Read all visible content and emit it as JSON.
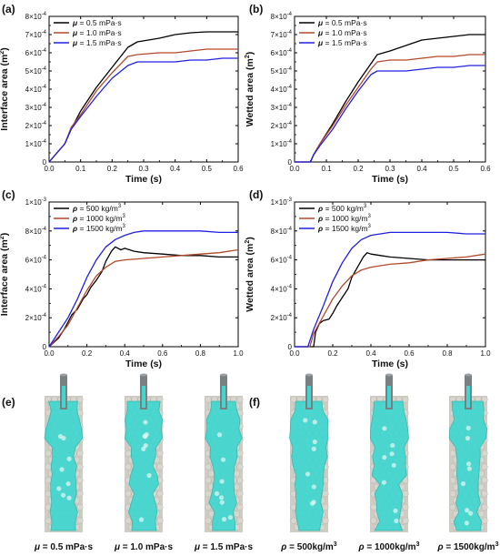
{
  "chart_data": [
    {
      "id": "a",
      "panel": "(a)",
      "type": "line",
      "xlabel": "Time (s)",
      "ylabel": "Interface area (m",
      "ylabel_sup": "2",
      "ylabel_end": ")",
      "xlim": [
        0,
        0.6
      ],
      "ylim": [
        0,
        0.0008
      ],
      "xticks": [
        "0.0",
        "0.1",
        "0.2",
        "0.3",
        "0.4",
        "0.5",
        "0.6"
      ],
      "yticks": [
        {
          "base": "0",
          "exp": ""
        },
        {
          "base": "1×10",
          "exp": "-4"
        },
        {
          "base": "2×10",
          "exp": "-4"
        },
        {
          "base": "3×10",
          "exp": "-4"
        },
        {
          "base": "4×10",
          "exp": "-4"
        },
        {
          "base": "5×10",
          "exp": "-4"
        },
        {
          "base": "6×10",
          "exp": "-4"
        },
        {
          "base": "7×10",
          "exp": "-4"
        },
        {
          "base": "8×10",
          "exp": "-4"
        }
      ],
      "series": [
        {
          "name": "μ = 0.5 mPa·s",
          "sym": "μ",
          "rest": " = 0.5 mPa·s",
          "color": "#000000",
          "x": [
            0,
            0.02,
            0.05,
            0.07,
            0.1,
            0.15,
            0.2,
            0.25,
            0.28,
            0.35,
            0.4,
            0.45,
            0.5,
            0.55,
            0.6
          ],
          "y": [
            0,
            4e-05,
            0.0001,
            0.00018,
            0.00028,
            0.00041,
            0.00052,
            0.00063,
            0.00066,
            0.00068,
            0.0007,
            0.00071,
            0.000715,
            0.000715,
            0.000715
          ]
        },
        {
          "name": "μ = 1.0 mPa·s",
          "sym": "μ",
          "rest": " = 1.0 mPa·s",
          "color": "#b2492a",
          "x": [
            0,
            0.02,
            0.05,
            0.07,
            0.1,
            0.15,
            0.2,
            0.25,
            0.28,
            0.35,
            0.4,
            0.45,
            0.5,
            0.55,
            0.6
          ],
          "y": [
            0,
            4e-05,
            0.0001,
            0.00019,
            0.00026,
            0.00039,
            0.00049,
            0.00058,
            0.00059,
            0.0006,
            0.0006,
            0.00061,
            0.00062,
            0.00062,
            0.00062
          ]
        },
        {
          "name": "μ = 1.5 mPa·s",
          "sym": "μ",
          "rest": " = 1.5 mPa·s",
          "color": "#2020e0",
          "x": [
            0,
            0.02,
            0.05,
            0.07,
            0.1,
            0.15,
            0.2,
            0.25,
            0.28,
            0.35,
            0.4,
            0.45,
            0.5,
            0.55,
            0.6
          ],
          "y": [
            0,
            4e-05,
            0.0001,
            0.00018,
            0.00025,
            0.00036,
            0.00046,
            0.00053,
            0.00055,
            0.00055,
            0.00055,
            0.00056,
            0.00056,
            0.00057,
            0.00057
          ]
        }
      ]
    },
    {
      "id": "b",
      "panel": "(b)",
      "type": "line",
      "xlabel": "Time (s)",
      "ylabel": "Wetted area (m",
      "ylabel_sup": "2",
      "ylabel_end": ")",
      "xlim": [
        0,
        0.6
      ],
      "ylim": [
        0,
        0.0008
      ],
      "xticks": [
        "0.0",
        "0.1",
        "0.2",
        "0.3",
        "0.4",
        "0.5",
        "0.6"
      ],
      "yticks": [
        {
          "base": "0",
          "exp": ""
        },
        {
          "base": "1×10",
          "exp": "-4"
        },
        {
          "base": "2×10",
          "exp": "-4"
        },
        {
          "base": "3×10",
          "exp": "-4"
        },
        {
          "base": "4×10",
          "exp": "-4"
        },
        {
          "base": "5×10",
          "exp": "-4"
        },
        {
          "base": "6×10",
          "exp": "-4"
        },
        {
          "base": "7×10",
          "exp": "-4"
        },
        {
          "base": "8×10",
          "exp": "-4"
        }
      ],
      "series": [
        {
          "name": "μ = 0.5 mPa·s",
          "sym": "μ",
          "rest": " = 0.5 mPa·s",
          "color": "#000000",
          "x": [
            0,
            0.05,
            0.06,
            0.08,
            0.12,
            0.16,
            0.2,
            0.24,
            0.26,
            0.3,
            0.35,
            0.4,
            0.45,
            0.5,
            0.55,
            0.6
          ],
          "y": [
            0,
            0,
            4e-05,
            0.0001,
            0.00021,
            0.00033,
            0.00044,
            0.00054,
            0.00059,
            0.00061,
            0.00064,
            0.00067,
            0.00068,
            0.00069,
            0.0007,
            0.0007
          ]
        },
        {
          "name": "μ = 1.0 mPa·s",
          "sym": "μ",
          "rest": " = 1.0 mPa·s",
          "color": "#b2492a",
          "x": [
            0,
            0.05,
            0.06,
            0.08,
            0.12,
            0.16,
            0.2,
            0.24,
            0.26,
            0.3,
            0.35,
            0.4,
            0.45,
            0.5,
            0.55,
            0.6
          ],
          "y": [
            0,
            0,
            4e-05,
            0.0001,
            0.0002,
            0.00031,
            0.00041,
            0.00051,
            0.00055,
            0.00056,
            0.00056,
            0.00057,
            0.00058,
            0.00058,
            0.00059,
            0.00059
          ]
        },
        {
          "name": "μ = 1.5 mPa·s",
          "sym": "μ",
          "rest": " = 1.5 mPa·s",
          "color": "#2020e0",
          "x": [
            0,
            0.05,
            0.06,
            0.08,
            0.12,
            0.16,
            0.2,
            0.24,
            0.26,
            0.3,
            0.35,
            0.4,
            0.45,
            0.5,
            0.55,
            0.6
          ],
          "y": [
            0,
            0,
            4e-05,
            9e-05,
            0.00018,
            0.00029,
            0.00039,
            0.00048,
            0.0005,
            0.0005,
            0.0005,
            0.00051,
            0.00052,
            0.00052,
            0.00053,
            0.00053
          ]
        }
      ]
    },
    {
      "id": "c",
      "panel": "(c)",
      "type": "line",
      "xlabel": "Time (s)",
      "ylabel": "Interface area (m",
      "ylabel_sup": "2",
      "ylabel_end": ")",
      "xlim": [
        0,
        1.0
      ],
      "ylim": [
        0,
        0.001
      ],
      "xticks": [
        "0.0",
        "0.2",
        "0.4",
        "0.6",
        "0.8",
        "1.0"
      ],
      "yticks": [
        {
          "base": "0",
          "exp": ""
        },
        {
          "base": "2×10",
          "exp": "-4"
        },
        {
          "base": "4×10",
          "exp": "-4"
        },
        {
          "base": "6×10",
          "exp": "-4"
        },
        {
          "base": "8×10",
          "exp": "-4"
        },
        {
          "base": "1×10",
          "exp": "-3"
        }
      ],
      "series": [
        {
          "name": "ρ = 500 kg/m³",
          "sym": "ρ",
          "rest": " = 500 kg/m",
          "sup": "3",
          "color": "#000000",
          "x": [
            0,
            0.05,
            0.08,
            0.1,
            0.12,
            0.15,
            0.18,
            0.2,
            0.22,
            0.25,
            0.28,
            0.3,
            0.33,
            0.35,
            0.38,
            0.4,
            0.45,
            0.5,
            0.6,
            0.7,
            0.8,
            0.9,
            1.0
          ],
          "y": [
            0,
            6e-05,
            0.00012,
            0.00017,
            0.00022,
            0.00026,
            0.00033,
            0.00036,
            0.00041,
            0.00046,
            0.00052,
            0.00059,
            0.00066,
            0.00069,
            0.00067,
            0.00068,
            0.00066,
            0.00065,
            0.00064,
            0.00063,
            0.00063,
            0.00062,
            0.00062
          ]
        },
        {
          "name": "ρ = 1000 kg/m³",
          "sym": "ρ",
          "rest": " = 1000 kg/m",
          "sup": "3",
          "color": "#b2492a",
          "x": [
            0,
            0.05,
            0.1,
            0.15,
            0.2,
            0.25,
            0.3,
            0.35,
            0.4,
            0.5,
            0.6,
            0.7,
            0.8,
            0.9,
            1.0
          ],
          "y": [
            0,
            7e-05,
            0.00015,
            0.00027,
            0.00039,
            0.00049,
            0.00055,
            0.00059,
            0.0006,
            0.00061,
            0.00062,
            0.00063,
            0.00064,
            0.00065,
            0.00067
          ]
        },
        {
          "name": "ρ = 1500 kg/m³",
          "sym": "ρ",
          "rest": " = 1500 kg/m",
          "sup": "3",
          "color": "#2020e0",
          "x": [
            0,
            0.05,
            0.1,
            0.15,
            0.2,
            0.25,
            0.3,
            0.35,
            0.4,
            0.45,
            0.5,
            0.6,
            0.7,
            0.8,
            0.9,
            1.0
          ],
          "y": [
            0,
            0.0001,
            0.0002,
            0.00033,
            0.00048,
            0.0006,
            0.00069,
            0.00074,
            0.00077,
            0.00079,
            0.0008,
            0.0008,
            0.0008,
            0.0008,
            0.00079,
            0.00079
          ]
        }
      ]
    },
    {
      "id": "d",
      "panel": "(d)",
      "type": "line",
      "xlabel": "Time (s)",
      "ylabel": "Wetted area (m",
      "ylabel_sup": "2",
      "ylabel_end": ")",
      "xlim": [
        0,
        1.0
      ],
      "ylim": [
        0,
        0.001
      ],
      "xticks": [
        "0.0",
        "0.2",
        "0.4",
        "0.6",
        "0.8",
        "1.0"
      ],
      "yticks": [
        {
          "base": "0",
          "exp": ""
        },
        {
          "base": "2×10",
          "exp": "-4"
        },
        {
          "base": "4×10",
          "exp": "-4"
        },
        {
          "base": "6×10",
          "exp": "-4"
        },
        {
          "base": "8×10",
          "exp": "-4"
        },
        {
          "base": "1×10",
          "exp": "-3"
        }
      ],
      "series": [
        {
          "name": "ρ = 500 kg/m³",
          "sym": "ρ",
          "rest": " = 500 kg/m",
          "sup": "3",
          "color": "#000000",
          "x": [
            0,
            0.1,
            0.11,
            0.13,
            0.15,
            0.18,
            0.2,
            0.22,
            0.25,
            0.28,
            0.3,
            0.33,
            0.36,
            0.38,
            0.4,
            0.45,
            0.5,
            0.6,
            0.7,
            0.8,
            0.9,
            1.0
          ],
          "y": [
            0,
            0,
            0.0001,
            0.00016,
            0.00018,
            0.00019,
            0.00023,
            0.00028,
            0.00034,
            0.0004,
            0.00048,
            0.00055,
            0.00062,
            0.00065,
            0.00064,
            0.00063,
            0.00062,
            0.00061,
            0.0006,
            0.0006,
            0.0006,
            0.0006
          ]
        },
        {
          "name": "ρ = 1000 kg/m³",
          "sym": "ρ",
          "rest": " = 1000 kg/m",
          "sup": "3",
          "color": "#b2492a",
          "x": [
            0,
            0.08,
            0.1,
            0.15,
            0.2,
            0.25,
            0.3,
            0.35,
            0.4,
            0.5,
            0.6,
            0.7,
            0.8,
            0.9,
            1.0
          ],
          "y": [
            0,
            0,
            9e-05,
            0.00021,
            0.00033,
            0.00042,
            0.00049,
            0.00053,
            0.00055,
            0.00057,
            0.00058,
            0.0006,
            0.00061,
            0.00062,
            0.00064
          ]
        },
        {
          "name": "ρ = 1500 kg/m³",
          "sym": "ρ",
          "rest": " = 1500 kg/m",
          "sup": "3",
          "color": "#2020e0",
          "x": [
            0,
            0.07,
            0.1,
            0.15,
            0.2,
            0.25,
            0.3,
            0.35,
            0.4,
            0.45,
            0.5,
            0.6,
            0.7,
            0.8,
            0.9,
            1.0
          ],
          "y": [
            0,
            0,
            0.00012,
            0.00028,
            0.00045,
            0.00058,
            0.00068,
            0.00074,
            0.00077,
            0.00078,
            0.00079,
            0.00079,
            0.00079,
            0.00079,
            0.00078,
            0.00078
          ]
        }
      ]
    }
  ],
  "snapshots": {
    "e": {
      "panel": "(e)",
      "items": [
        {
          "sym": "μ",
          "rest": " = 0.5 mPa·s"
        },
        {
          "sym": "μ",
          "rest": " = 1.0 mPa·s"
        },
        {
          "sym": "μ",
          "rest": " = 1.5 mPa·s"
        }
      ]
    },
    "f": {
      "panel": "(f)",
      "items": [
        {
          "sym": "ρ",
          "rest": " = 500kg/m",
          "sup": "3"
        },
        {
          "sym": "ρ",
          "rest": " = 1000kg/m",
          "sup": "3"
        },
        {
          "sym": "ρ",
          "rest": " = 1500kg/m",
          "sup": "3"
        }
      ]
    }
  },
  "colors": {
    "fluid": "#3fd7cf",
    "particle": "#d9d6cf",
    "needle": "#7a7f82"
  }
}
